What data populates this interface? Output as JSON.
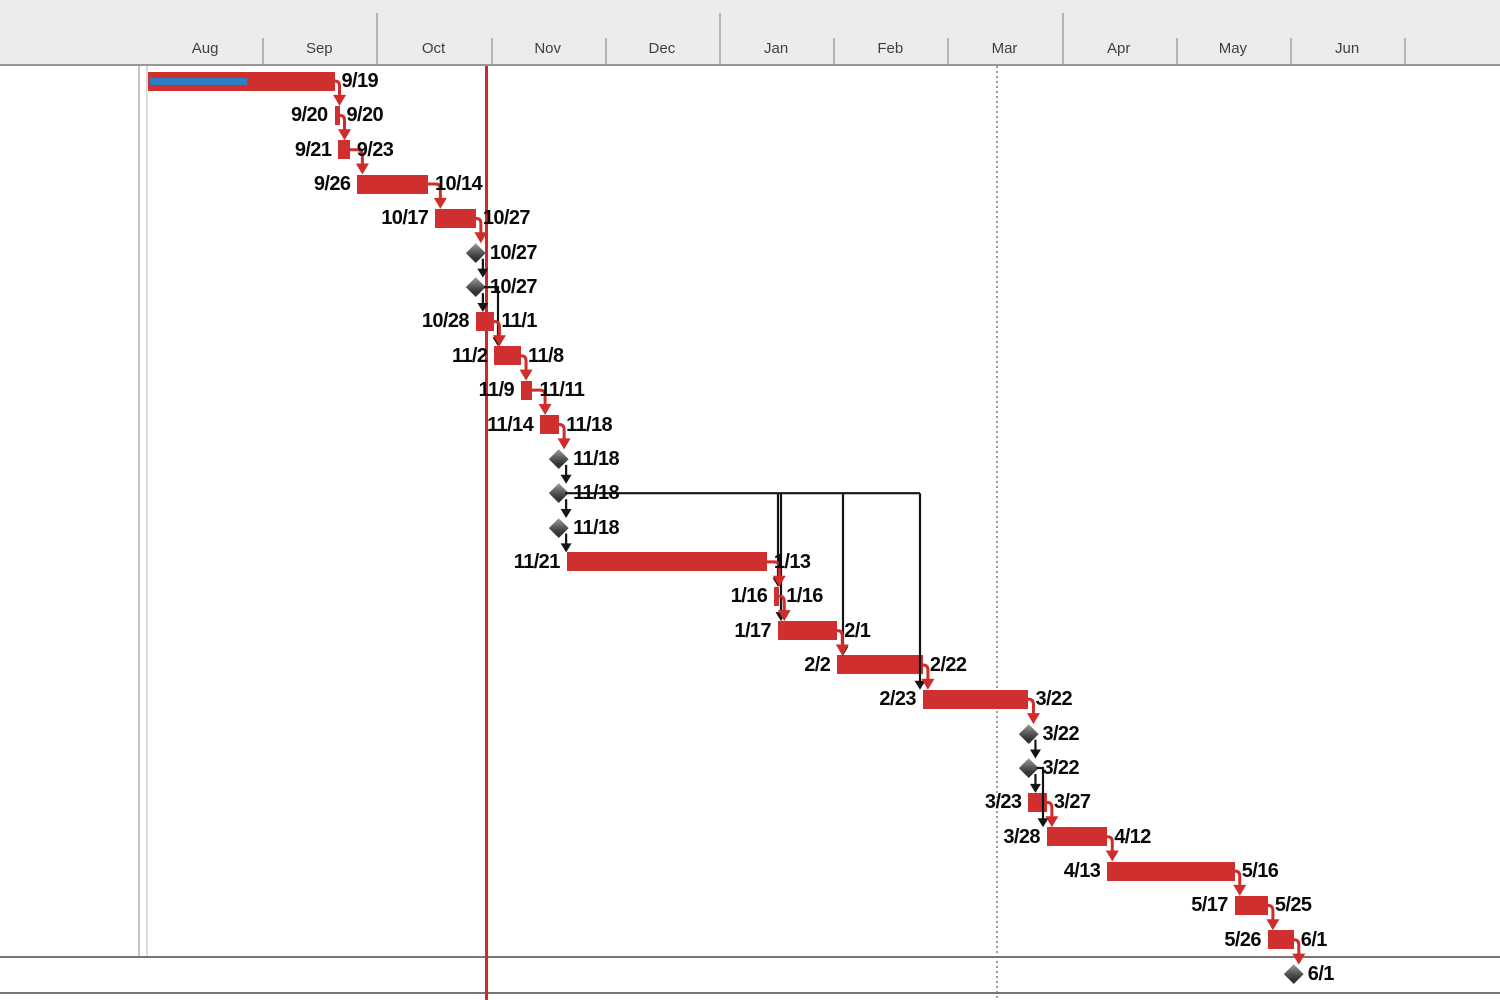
{
  "header": {
    "months": [
      "Aug",
      "Sep",
      "Oct",
      "Nov",
      "Dec",
      "Jan",
      "Feb",
      "Mar",
      "Apr",
      "May",
      "Jun"
    ],
    "quarter_tick_months": [
      "Oct",
      "Jan",
      "Apr"
    ]
  },
  "markers": [
    {
      "name": "current-date-line",
      "style": "solid-red",
      "approx_date": "10/30"
    },
    {
      "name": "status-date-gridline",
      "style": "dotted-gray",
      "approx_date": "3/13"
    },
    {
      "name": "project-start-lines",
      "style": "double-gray",
      "approx_date": "8/1"
    }
  ],
  "colors": {
    "bar_red": "#d02f2f",
    "progress_blue": "#2f7ec5",
    "milestone_gray": "#3a3a3a",
    "link_red": "#cf2c2c",
    "link_black": "#141414",
    "current_date_line": "#d12727",
    "header_bg": "#ececec"
  },
  "chart_data": {
    "type": "gantt",
    "timescale": {
      "unit": "month",
      "labels": [
        "Aug",
        "Sep",
        "Oct",
        "Nov",
        "Dec",
        "Jan",
        "Feb",
        "Mar",
        "Apr",
        "May",
        "Jun"
      ]
    },
    "tasks": [
      {
        "row": 1,
        "shape": "bar",
        "start": "8/1",
        "finish": "9/19",
        "label_left": "",
        "label_right": "9/19",
        "progress_through": "8/27"
      },
      {
        "row": 2,
        "shape": "bar",
        "start": "9/20",
        "finish": "9/20",
        "label_left": "9/20",
        "label_right": "9/20"
      },
      {
        "row": 3,
        "shape": "bar",
        "start": "9/21",
        "finish": "9/23",
        "label_left": "9/21",
        "label_right": "9/23"
      },
      {
        "row": 4,
        "shape": "bar",
        "start": "9/26",
        "finish": "10/14",
        "label_left": "9/26",
        "label_right": "10/14"
      },
      {
        "row": 5,
        "shape": "bar",
        "start": "10/17",
        "finish": "10/27",
        "label_left": "10/17",
        "label_right": "10/27"
      },
      {
        "row": 6,
        "shape": "milestone",
        "date": "10/27",
        "label_right": "10/27"
      },
      {
        "row": 7,
        "shape": "milestone",
        "date": "10/27",
        "label_right": "10/27"
      },
      {
        "row": 8,
        "shape": "bar",
        "start": "10/28",
        "finish": "11/1",
        "label_left": "10/28",
        "label_right": "11/1"
      },
      {
        "row": 9,
        "shape": "bar",
        "start": "11/2",
        "finish": "11/8",
        "label_left": "11/2",
        "label_right": "11/8"
      },
      {
        "row": 10,
        "shape": "bar",
        "start": "11/9",
        "finish": "11/11",
        "label_left": "11/9",
        "label_right": "11/11"
      },
      {
        "row": 11,
        "shape": "bar",
        "start": "11/14",
        "finish": "11/18",
        "label_left": "11/14",
        "label_right": "11/18"
      },
      {
        "row": 12,
        "shape": "milestone",
        "date": "11/18",
        "label_right": "11/18"
      },
      {
        "row": 13,
        "shape": "milestone",
        "date": "11/18",
        "label_right": "11/18"
      },
      {
        "row": 14,
        "shape": "milestone",
        "date": "11/18",
        "label_right": "11/18"
      },
      {
        "row": 15,
        "shape": "bar",
        "start": "11/21",
        "finish": "1/13",
        "label_left": "11/21",
        "label_right": "1/13"
      },
      {
        "row": 16,
        "shape": "bar",
        "start": "1/16",
        "finish": "1/16",
        "label_left": "1/16",
        "label_right": "1/16"
      },
      {
        "row": 17,
        "shape": "bar",
        "start": "1/17",
        "finish": "2/1",
        "label_left": "1/17",
        "label_right": "2/1"
      },
      {
        "row": 18,
        "shape": "bar",
        "start": "2/2",
        "finish": "2/22",
        "label_left": "2/2",
        "label_right": "2/22"
      },
      {
        "row": 19,
        "shape": "bar",
        "start": "2/23",
        "finish": "3/22",
        "label_left": "2/23",
        "label_right": "3/22"
      },
      {
        "row": 20,
        "shape": "milestone",
        "date": "3/22",
        "label_right": "3/22"
      },
      {
        "row": 21,
        "shape": "milestone",
        "date": "3/22",
        "label_right": "3/22"
      },
      {
        "row": 22,
        "shape": "bar",
        "start": "3/23",
        "finish": "3/27",
        "label_left": "3/23",
        "label_right": "3/27"
      },
      {
        "row": 23,
        "shape": "bar",
        "start": "3/28",
        "finish": "4/12",
        "label_left": "3/28",
        "label_right": "4/12"
      },
      {
        "row": 24,
        "shape": "bar",
        "start": "4/13",
        "finish": "5/16",
        "label_left": "4/13",
        "label_right": "5/16"
      },
      {
        "row": 25,
        "shape": "bar",
        "start": "5/17",
        "finish": "5/25",
        "label_left": "5/17",
        "label_right": "5/25"
      },
      {
        "row": 26,
        "shape": "bar",
        "start": "5/26",
        "finish": "6/1",
        "label_left": "5/26",
        "label_right": "6/1"
      },
      {
        "row": 27,
        "shape": "milestone",
        "date": "6/1",
        "label_right": "6/1"
      }
    ],
    "links": [
      {
        "from": 1,
        "to": 2,
        "style": "red"
      },
      {
        "from": 2,
        "to": 3,
        "style": "red"
      },
      {
        "from": 3,
        "to": 4,
        "style": "red"
      },
      {
        "from": 4,
        "to": 5,
        "style": "red"
      },
      {
        "from": 5,
        "to": 6,
        "style": "red"
      },
      {
        "from": 6,
        "to": 7,
        "style": "black"
      },
      {
        "from": 7,
        "to": 8,
        "style": "black"
      },
      {
        "from": 7,
        "to": 9,
        "style": "black-elbow",
        "drop": 498
      },
      {
        "from": 8,
        "to": 9,
        "style": "red"
      },
      {
        "from": 9,
        "to": 10,
        "style": "red"
      },
      {
        "from": 10,
        "to": 11,
        "style": "red"
      },
      {
        "from": 11,
        "to": 12,
        "style": "red"
      },
      {
        "from": 12,
        "to": 13,
        "style": "black"
      },
      {
        "from": 13,
        "to": 14,
        "style": "black"
      },
      {
        "from": 14,
        "to": 15,
        "style": "black"
      },
      {
        "from": 13,
        "style": "black-multi",
        "targets": [
          {
            "row": 16,
            "drop": 778
          },
          {
            "row": 17,
            "drop": 781
          },
          {
            "row": 18,
            "drop": 843
          },
          {
            "row": 19,
            "drop": 920
          }
        ]
      },
      {
        "from": 15,
        "to": 16,
        "style": "red"
      },
      {
        "from": 16,
        "to": 17,
        "style": "red"
      },
      {
        "from": 17,
        "to": 18,
        "style": "red"
      },
      {
        "from": 18,
        "to": 19,
        "style": "red"
      },
      {
        "from": 19,
        "to": 20,
        "style": "red"
      },
      {
        "from": 20,
        "to": 21,
        "style": "black"
      },
      {
        "from": 21,
        "to": 22,
        "style": "black"
      },
      {
        "from": 21,
        "to": 23,
        "style": "black-elbow",
        "drop": 1043
      },
      {
        "from": 22,
        "to": 23,
        "style": "red"
      },
      {
        "from": 23,
        "to": 24,
        "style": "red"
      },
      {
        "from": 24,
        "to": 25,
        "style": "red"
      },
      {
        "from": 25,
        "to": 26,
        "style": "red"
      },
      {
        "from": 26,
        "to": 27,
        "style": "red"
      }
    ]
  }
}
